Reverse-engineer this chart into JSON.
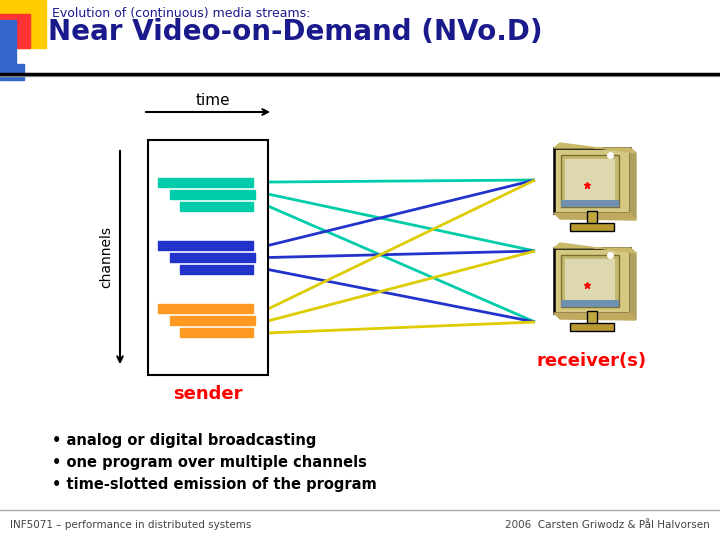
{
  "title_small": "Evolution of (continuous) media streams:",
  "title_large": "Near Video-on-Demand (NVo.D)",
  "title_color": "#1a1a8c",
  "bg_color": "#ffffff",
  "sender_label": "sender",
  "receiver_label": "receiver(s)",
  "label_color": "#ff0000",
  "time_label": "time",
  "channels_label": "channels",
  "bullet_points": [
    "• analog or digital broadcasting",
    "• one program over multiple channels",
    "• time-slotted emission of the program"
  ],
  "bullet_color": "#000000",
  "channel_colors_inside": [
    "#00ccaa",
    "#2233cc",
    "#ff9922"
  ],
  "channel_colors_outside": [
    "#00ccaa",
    "#2233cc",
    "#ddcc00"
  ],
  "footer_left": "INF5071 – performance in distributed systems",
  "footer_right": "2006  Carsten Griwodz & Pål Halvorsen",
  "header_bar_colors": [
    "#ffcc00",
    "#ff3333",
    "#3366cc"
  ],
  "sep_line_color": "#aaaaaa",
  "black_sep_color": "#000000"
}
